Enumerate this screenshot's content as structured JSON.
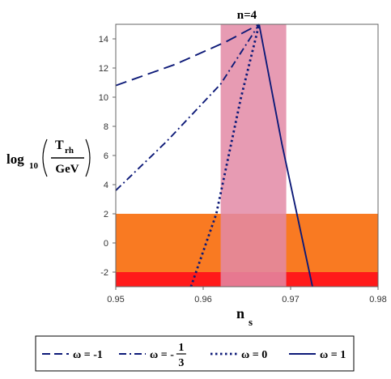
{
  "chart_data": {
    "type": "line",
    "title": "n=4",
    "xlabel": {
      "main": "n",
      "sub": "s"
    },
    "ylabel": {
      "prefix": "log",
      "prefix_sub": "10",
      "numerator": "T",
      "numerator_sub": "rh",
      "denominator": "GeV"
    },
    "xlim": [
      0.95,
      0.98
    ],
    "ylim": [
      -3,
      15
    ],
    "xticks": [
      "0.95",
      "0.96",
      "0.97",
      "0.98"
    ],
    "yticks": [
      "-2",
      "0",
      "2",
      "4",
      "6",
      "8",
      "10",
      "12",
      "14"
    ],
    "grid": false,
    "legend_position": "bottom",
    "regions": [
      {
        "kind": "horizontal-band",
        "y": [
          -3,
          2
        ],
        "color": "#f97a22"
      },
      {
        "kind": "horizontal-band",
        "y": [
          -3,
          -2
        ],
        "color": "#ff1a1a"
      },
      {
        "kind": "vertical-band",
        "x": [
          0.962,
          0.9695
        ],
        "color": "#e38aa6",
        "opacity": 0.85
      }
    ],
    "series": [
      {
        "legend_lhs": "ω = -1",
        "style": "long-dash",
        "color": "#0d1a78",
        "x": [
          0.95,
          0.9568,
          0.9626,
          0.9664
        ],
        "y": [
          10.8,
          12.25,
          13.8,
          15.0
        ]
      },
      {
        "legend_lhs": "ω = -",
        "legend_frac_num": "1",
        "legend_frac_den": "3",
        "style": "dash-dot",
        "color": "#0d1a78",
        "x": [
          0.95,
          0.9558,
          0.962,
          0.9664
        ],
        "y": [
          3.6,
          6.95,
          10.9,
          15.0
        ]
      },
      {
        "legend_lhs": "ω = 0",
        "style": "dotted",
        "color": "#0d1a78",
        "x": [
          0.9586,
          0.9615,
          0.9643,
          0.9664
        ],
        "y": [
          -3.0,
          2.0,
          9.9,
          15.0
        ]
      },
      {
        "legend_lhs": "ω = 1",
        "style": "solid",
        "color": "#0d1a78",
        "x": [
          0.9664,
          0.969,
          0.9725
        ],
        "y": [
          15.0,
          6.8,
          -3.0
        ]
      }
    ]
  }
}
